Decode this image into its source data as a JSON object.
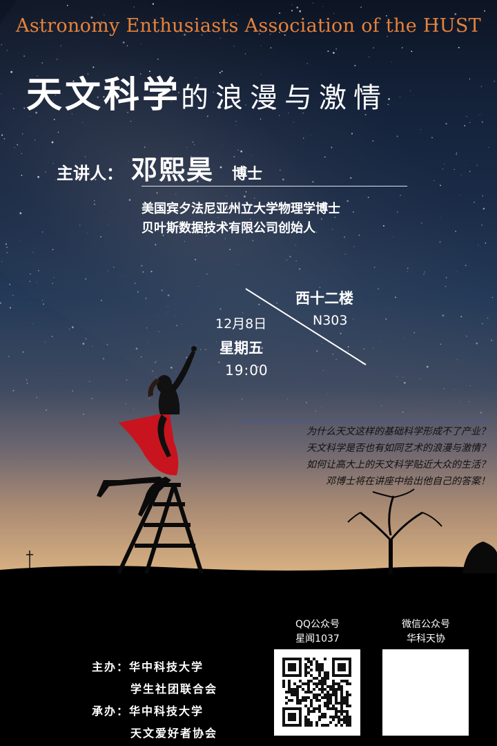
{
  "poster": {
    "association_title": "Astronomy Enthusiasts Association of the HUST",
    "main_title_big": "天文科学",
    "main_title_small": "的浪漫与激情",
    "speaker": {
      "label": "主讲人：",
      "name": "邓熙昊",
      "title": "博士"
    },
    "credentials": [
      "美国宾夕法尼亚州立大学物理学博士",
      "贝叶斯数据技术有限公司创始人"
    ],
    "venue": {
      "building": "西十二楼",
      "room": "N303"
    },
    "datetime": {
      "date": "12月8日",
      "weekday": "星期五",
      "time": "19:00"
    },
    "questions": [
      "为什么天文这样的基础科学形成不了产业？",
      "天文科学是否也有如同艺术的浪漫与激情？",
      "如何让高大上的天文科学贴近大众的生活？",
      "邓博士将在讲座中给出他自己的答案！"
    ],
    "organizers": {
      "host_label": "主办：",
      "host_line1": "华中科技大学",
      "host_line2": "学生社团联合会",
      "coorg_label": "承办：",
      "coorg_line1": "华中科技大学",
      "coorg_line2": "天文爱好者协会"
    },
    "qq": {
      "label": "QQ公众号",
      "id": "星闻1037"
    },
    "wechat": {
      "label": "微信公众号",
      "id": "华科天协"
    },
    "colors": {
      "title_orange": "#e8823a",
      "dress_red": "#c8141e",
      "rule_blue": "#3d5aa8"
    }
  }
}
